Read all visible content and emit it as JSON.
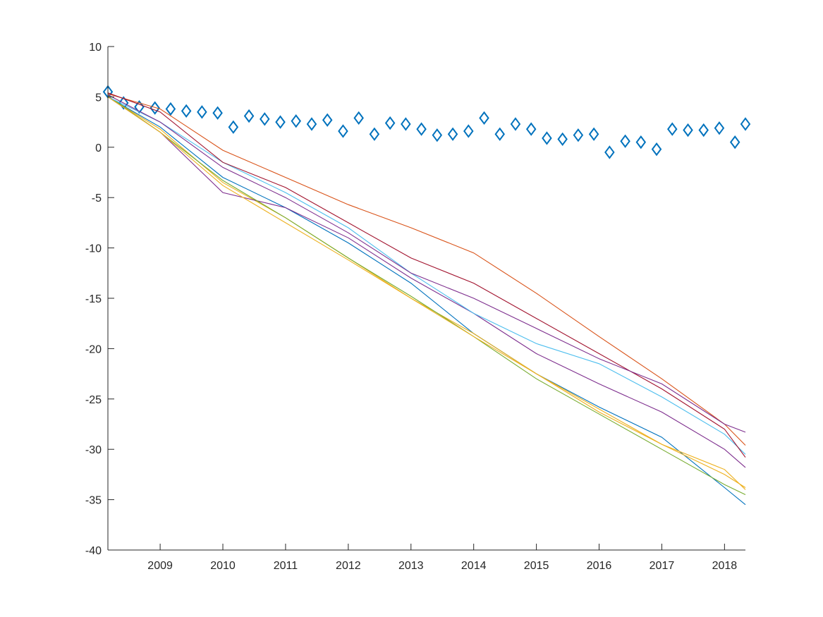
{
  "chart_data": {
    "type": "line",
    "title": "",
    "xlabel": "",
    "ylabel": "",
    "xlim": [
      "2008-03-01",
      "2018-05-01"
    ],
    "ylim": [
      -40,
      10
    ],
    "grid": false,
    "legend": "none",
    "x_ticks": [
      "2009",
      "2010",
      "2011",
      "2012",
      "2013",
      "2014",
      "2015",
      "2016",
      "2017",
      "2018"
    ],
    "y_ticks": [
      "10",
      "5",
      "0",
      "-5",
      "-10",
      "-15",
      "-20",
      "-25",
      "-30",
      "-35",
      "-40"
    ],
    "series": [
      {
        "marker": "diamond",
        "color": "#0072BD",
        "x": [
          "2008-03",
          "2008-06",
          "2008-09",
          "2008-12",
          "2009-03",
          "2009-06",
          "2009-09",
          "2009-12",
          "2010-03",
          "2010-06",
          "2010-09",
          "2010-12",
          "2011-03",
          "2011-06",
          "2011-09",
          "2011-12",
          "2012-03",
          "2012-06",
          "2012-09",
          "2012-12",
          "2013-03",
          "2013-06",
          "2013-09",
          "2013-12",
          "2014-03",
          "2014-06",
          "2014-09",
          "2014-12",
          "2015-03",
          "2015-06",
          "2015-09",
          "2015-12",
          "2016-03",
          "2016-06",
          "2016-09",
          "2016-12",
          "2017-03",
          "2017-06",
          "2017-09",
          "2017-12",
          "2018-03",
          "2018-05"
        ],
        "y": [
          5.5,
          4.4,
          4.0,
          3.9,
          3.8,
          3.6,
          3.5,
          3.4,
          2.0,
          3.1,
          2.8,
          2.5,
          2.6,
          2.3,
          2.7,
          1.6,
          2.9,
          1.3,
          2.4,
          2.3,
          1.8,
          1.2,
          1.3,
          1.6,
          2.9,
          1.3,
          2.3,
          1.8,
          0.9,
          0.8,
          1.2,
          1.3,
          -0.5,
          0.6,
          0.5,
          -0.2,
          1.8,
          1.7,
          1.7,
          1.9,
          0.5,
          2.3
        ]
      },
      {
        "color": "#0072BD",
        "x": [
          "2008-03",
          "2009-01",
          "2010-01",
          "2011-01",
          "2012-01",
          "2013-01",
          "2014-01",
          "2015-01",
          "2016-01",
          "2017-01",
          "2018-01",
          "2018-05"
        ],
        "y": [
          5.0,
          2.0,
          -3.0,
          -6.0,
          -9.5,
          -13.5,
          -18.5,
          -22.5,
          -25.8,
          -28.8,
          -33.8,
          -35.5
        ]
      },
      {
        "color": "#D95319",
        "x": [
          "2008-03",
          "2009-01",
          "2010-01",
          "2011-01",
          "2012-01",
          "2013-01",
          "2014-01",
          "2015-01",
          "2016-01",
          "2017-01",
          "2018-01",
          "2018-05"
        ],
        "y": [
          5.3,
          3.8,
          -0.3,
          -3.0,
          -5.7,
          -8.0,
          -10.5,
          -14.5,
          -18.8,
          -23.0,
          -27.5,
          -29.6
        ]
      },
      {
        "color": "#EDB120",
        "x": [
          "2008-03",
          "2009-01",
          "2010-01",
          "2011-01",
          "2012-01",
          "2013-01",
          "2014-01",
          "2015-01",
          "2016-01",
          "2017-01",
          "2018-01",
          "2018-05"
        ],
        "y": [
          5.0,
          1.8,
          -3.5,
          -7.0,
          -11.0,
          -15.0,
          -18.5,
          -22.5,
          -26.0,
          -29.5,
          -32.0,
          -34.0
        ]
      },
      {
        "color": "#7E2F8E",
        "x": [
          "2008-03",
          "2009-01",
          "2010-01",
          "2011-01",
          "2012-01",
          "2013-01",
          "2014-01",
          "2015-01",
          "2016-01",
          "2017-01",
          "2018-01",
          "2018-05"
        ],
        "y": [
          5.0,
          1.5,
          -4.5,
          -6.0,
          -9.0,
          -13.0,
          -16.5,
          -20.5,
          -23.5,
          -26.3,
          -30.0,
          -31.8
        ]
      },
      {
        "color": "#77AC30",
        "x": [
          "2008-03",
          "2009-01",
          "2010-01",
          "2011-01",
          "2012-01",
          "2013-01",
          "2014-01",
          "2015-01",
          "2016-01",
          "2017-01",
          "2018-01",
          "2018-05"
        ],
        "y": [
          5.1,
          1.5,
          -3.3,
          -7.0,
          -11.0,
          -14.8,
          -18.8,
          -23.0,
          -26.5,
          -30.0,
          -33.5,
          -34.5
        ]
      },
      {
        "color": "#4DBEEE",
        "x": [
          "2008-03",
          "2009-01",
          "2010-01",
          "2011-01",
          "2012-01",
          "2013-01",
          "2014-01",
          "2015-01",
          "2016-01",
          "2017-01",
          "2018-01",
          "2018-05"
        ],
        "y": [
          5.0,
          2.5,
          -1.5,
          -4.5,
          -8.0,
          -12.5,
          -16.5,
          -19.5,
          -21.5,
          -24.8,
          -28.5,
          -30.5
        ]
      },
      {
        "color": "#A2142F",
        "x": [
          "2008-03",
          "2009-01",
          "2010-01",
          "2011-01",
          "2012-01",
          "2013-01",
          "2014-01",
          "2015-01",
          "2016-01",
          "2017-01",
          "2018-01",
          "2018-05"
        ],
        "y": [
          5.4,
          3.5,
          -1.5,
          -4.0,
          -7.5,
          -11.0,
          -13.5,
          -17.0,
          -20.5,
          -24.0,
          -28.0,
          -30.8
        ]
      },
      {
        "color": "#7E2F8E",
        "x": [
          "2008-03",
          "2009-01",
          "2010-01",
          "2011-01",
          "2012-01",
          "2013-01",
          "2014-01",
          "2015-01",
          "2016-01",
          "2017-01",
          "2018-01",
          "2018-05"
        ],
        "y": [
          5.2,
          2.5,
          -2.0,
          -5.0,
          -8.5,
          -12.5,
          -15.0,
          -18.0,
          -21.0,
          -23.5,
          -27.5,
          -28.3
        ]
      },
      {
        "color": "#EDB120",
        "x": [
          "2008-03",
          "2009-01",
          "2010-01",
          "2011-01",
          "2012-01",
          "2013-01",
          "2014-01",
          "2015-01",
          "2016-01",
          "2017-01",
          "2018-01",
          "2018-05"
        ],
        "y": [
          5.0,
          1.5,
          -3.8,
          -7.5,
          -11.2,
          -15.0,
          -18.8,
          -22.5,
          -26.3,
          -29.5,
          -32.5,
          -33.8
        ]
      }
    ]
  }
}
